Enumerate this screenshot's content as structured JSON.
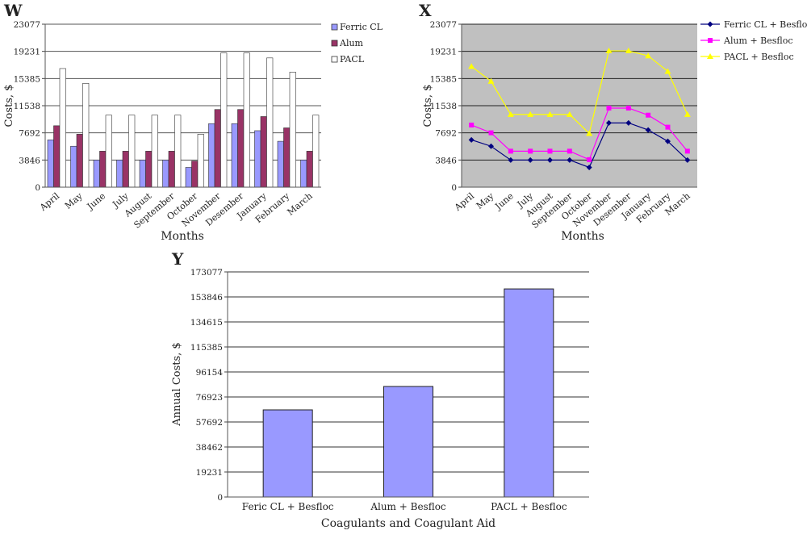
{
  "chart_data": [
    {
      "panel_label": "W",
      "type": "bar",
      "xlabel": "Months",
      "ylabel": "Costs, $",
      "ylim": [
        0,
        23077
      ],
      "yticks": [
        0,
        3846,
        7692,
        11538,
        15385,
        19231,
        23077
      ],
      "grid": true,
      "legend_position": "right",
      "categories": [
        "April",
        "May",
        "June",
        "July",
        "August",
        "September",
        "October",
        "November",
        "Desember",
        "January",
        "February",
        "March"
      ],
      "series": [
        {
          "name": "Ferric CL",
          "color": "#9999ff",
          "values": [
            6700,
            5800,
            3846,
            3846,
            3846,
            3846,
            2800,
            9000,
            9000,
            8000,
            6500,
            3846
          ]
        },
        {
          "name": "Alum",
          "color": "#993366",
          "values": [
            8700,
            7500,
            5100,
            5100,
            5100,
            5100,
            3700,
            11000,
            11000,
            10000,
            8400,
            5100
          ]
        },
        {
          "name": "PACL",
          "color": "#ffffff",
          "values": [
            16800,
            14700,
            10200,
            10200,
            10200,
            10200,
            7500,
            19000,
            19000,
            18300,
            16300,
            10200
          ]
        }
      ]
    },
    {
      "panel_label": "X",
      "type": "line",
      "xlabel": "Months",
      "ylabel": "Costs, $",
      "ylim": [
        0,
        23077
      ],
      "yticks": [
        0,
        3846,
        7692,
        11538,
        15385,
        19231,
        23077
      ],
      "grid": true,
      "legend_position": "right",
      "plot_background": "#c0c0c0",
      "categories": [
        "April",
        "May",
        "June",
        "July",
        "August",
        "September",
        "October",
        "November",
        "Desember",
        "January",
        "February",
        "March"
      ],
      "series": [
        {
          "name": "Ferric CL + Besfloc",
          "color": "#000080",
          "marker": "diamond",
          "values": [
            6700,
            5800,
            3846,
            3846,
            3846,
            3846,
            2800,
            9100,
            9100,
            8100,
            6500,
            3846
          ]
        },
        {
          "name": "Alum + Besfloc",
          "color": "#ff00ff",
          "marker": "square",
          "values": [
            8800,
            7700,
            5100,
            5100,
            5100,
            5100,
            3900,
            11200,
            11200,
            10200,
            8500,
            5100
          ]
        },
        {
          "name": "PACL + Besfloc",
          "color": "#ffff00",
          "marker": "triangle",
          "values": [
            17100,
            15000,
            10300,
            10300,
            10300,
            10300,
            7600,
            19300,
            19300,
            18600,
            16400,
            10300
          ]
        }
      ]
    },
    {
      "panel_label": "Y",
      "type": "bar",
      "xlabel": "Coagulants and Coagulant Aid",
      "ylabel": "Annual Costs, $",
      "ylim": [
        0,
        173077
      ],
      "yticks": [
        0,
        19231,
        38462,
        57692,
        76923,
        96154,
        115385,
        134615,
        153846,
        173077
      ],
      "grid": true,
      "categories": [
        "Feric CL + Besfloc",
        "Alum + Besfloc",
        "PACL + Besfloc"
      ],
      "series": [
        {
          "color": "#9999ff",
          "values": [
            67000,
            85000,
            160000
          ]
        }
      ]
    }
  ]
}
